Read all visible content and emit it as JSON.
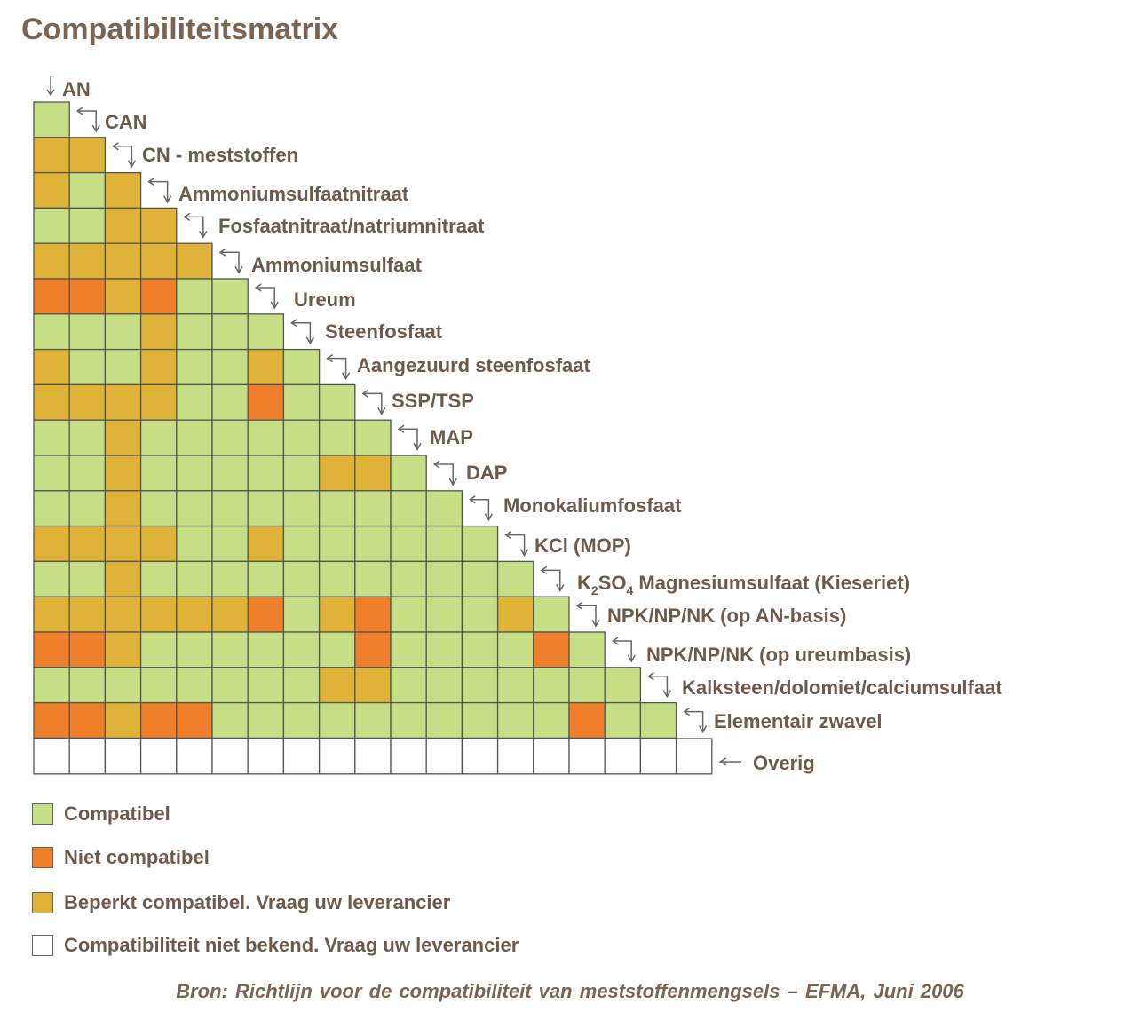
{
  "title": "Compatibiliteitsmatrix",
  "chart_data": {
    "type": "heatmap",
    "title": "Compatibiliteitsmatrix",
    "categories": [
      "AN",
      "CAN",
      "CN - meststoffen",
      "Ammoniumsulfaatnitraat",
      "Fosfaatnitraat/natriumnitraat",
      "Ammoniumsulfaat",
      "Ureum",
      "Steenfosfaat",
      "Aangezuurd steenfosfaat",
      "SSP/TSP",
      "MAP",
      "DAP",
      "Monokaliumfosfaat",
      "KCl (MOP)",
      "K2SO4 Magnesiumsulfaat (Kieseriet)",
      "NPK/NP/NK (op AN-basis)",
      "NPK/NP/NK (op ureumbasis)",
      "Kalksteen/dolomiet/calciumsulfaat",
      "Elementair zwavel",
      "Overig"
    ],
    "label_parts": {
      "k2so4": {
        "k": "K",
        "sub2": "2",
        "so": "SO",
        "sub4": "4",
        "rest": " Magnesiumsulfaat (Kieseriet)"
      }
    },
    "value_codes": {
      "C": "Compatibel",
      "N": "Niet compatibel",
      "B": "Beperkt compatibel. Vraag uw leverancier",
      "U": "Compatibiliteit niet bekend. Vraag uw leverancier"
    },
    "rows": [
      "C",
      "BB",
      "BCB",
      "CCBB",
      "BBBBB",
      "NNBNCC",
      "CCCBCCC",
      "BCCBCCBC",
      "BBBBCCNCC",
      "CCBCCCCCCC",
      "CCBCCCCCBBC",
      "CCBCCCCCCCCC",
      "BBBBCCBCCCCCC",
      "CCBCCCCCCCCCCC",
      "BBBBBBNCBNCCCBC",
      "NNBCCCCCCNCCCCNC",
      "CCCCCCCCBBCCCCCCC",
      "NNBNNCCCCCCCCCCNCC",
      "UUUUUUUUUUUUUUUUUUU"
    ]
  },
  "legend": [
    {
      "key": "C",
      "label": "Compatibel",
      "color": "#c6df86"
    },
    {
      "key": "N",
      "label": "Niet compatibel",
      "color": "#f07f2c"
    },
    {
      "key": "B",
      "label": "Beperkt compatibel. Vraag uw leverancier",
      "color": "#dfb238"
    },
    {
      "key": "U",
      "label": "Compatibiliteit niet bekend. Vraag uw leverancier",
      "color": "#ffffff"
    }
  ],
  "colors": {
    "C": "#c6df86",
    "N": "#f07f2c",
    "B": "#dfb238",
    "U": "#ffffff",
    "grid": "#555555",
    "text": "#6e5a4c",
    "title": "#7a6452"
  },
  "source": "Bron: Richtlijn voor de compatibiliteit van meststoffenmengsels – EFMA, Juni 2006"
}
